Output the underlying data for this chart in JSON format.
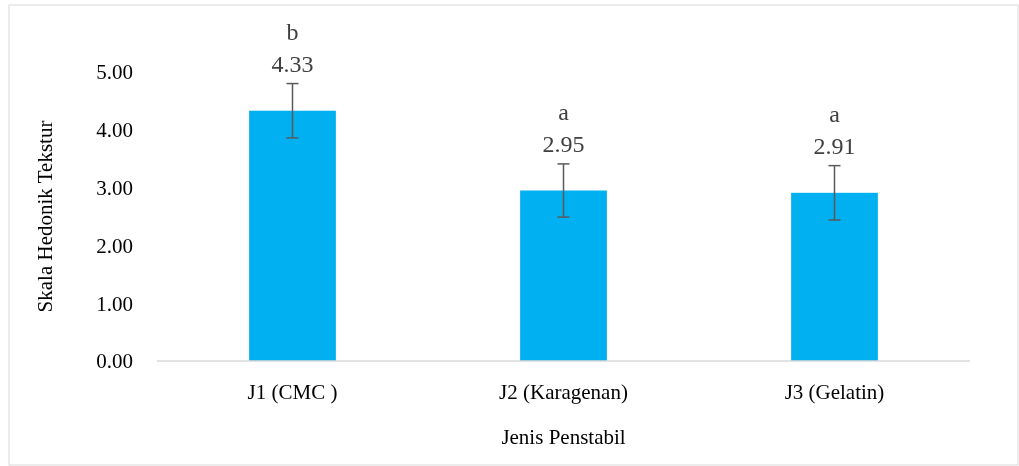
{
  "chart_data": {
    "type": "bar",
    "xlabel": "Jenis Penstabil",
    "ylabel": "Skala Hedonik Tekstur",
    "categories": [
      "J1 (CMC )",
      "J2 (Karagenan)",
      "J3 (Gelatin)"
    ],
    "values": [
      4.33,
      2.95,
      2.91
    ],
    "color": "#00b0f0",
    "errors": [
      0.47,
      0.46,
      0.47
    ],
    "data_labels": true,
    "annotations": [
      {
        "text": "b",
        "x": "J1 (CMC )",
        "y": 4.33
      },
      {
        "text": "a",
        "x": "J2 (Karagenan)",
        "y": 2.95
      },
      {
        "text": "a",
        "x": "J3 (Gelatin)",
        "y": 2.91
      }
    ],
    "ylim": [
      0,
      5
    ],
    "yticks": [
      {
        "value": 0,
        "label": "0.00"
      },
      {
        "value": 1,
        "label": "1.00"
      },
      {
        "value": 2,
        "label": "2.00"
      },
      {
        "value": 3,
        "label": "3.00"
      },
      {
        "value": 4,
        "label": "4.00"
      },
      {
        "value": 5,
        "label": "5.00"
      }
    ],
    "grid": false
  }
}
